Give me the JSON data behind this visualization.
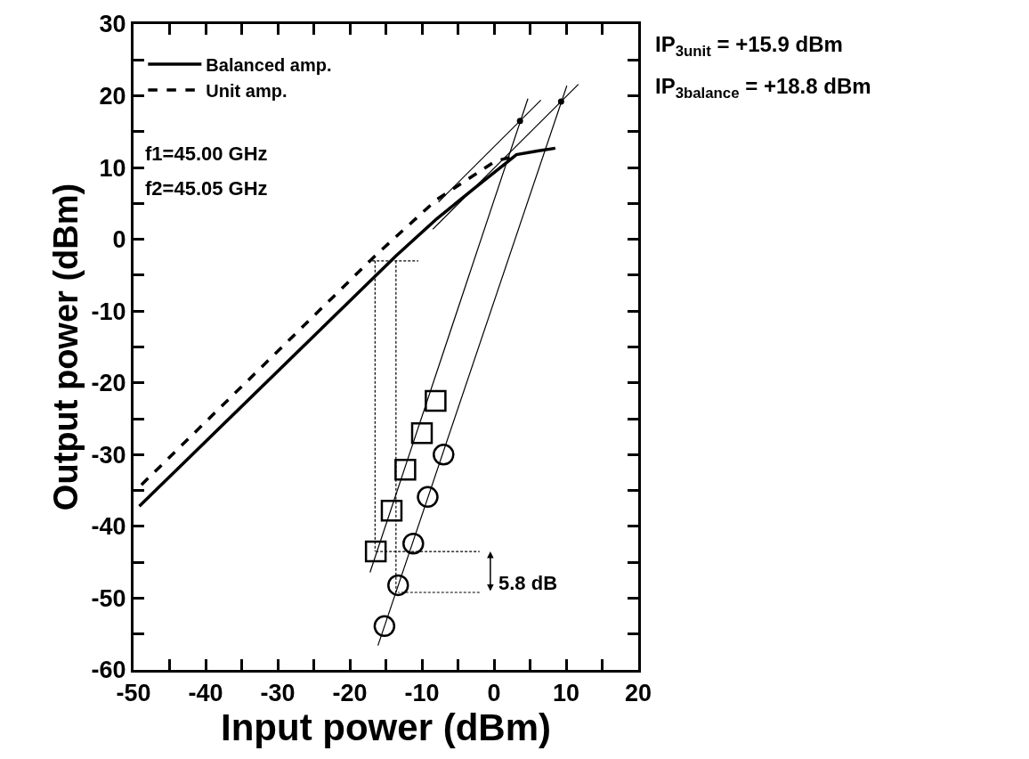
{
  "chart_data": {
    "type": "line",
    "xlabel": "Input power (dBm)",
    "ylabel": "Output power (dBm)",
    "xlim": [
      -50,
      20
    ],
    "ylim": [
      -60,
      30
    ],
    "xticks": [
      -50,
      {
        "value": -45,
        "label": null
      },
      -40,
      {
        "value": -35,
        "label": null
      },
      -30,
      {
        "value": -25,
        "label": null
      },
      -20,
      {
        "value": -15,
        "label": null
      },
      -10,
      {
        "value": -5,
        "label": null
      },
      0,
      {
        "value": 5,
        "label": null
      },
      10,
      {
        "value": 15,
        "label": null
      },
      20
    ],
    "yticks": [
      -60,
      {
        "value": -55,
        "label": null
      },
      -50,
      {
        "value": -45,
        "label": null
      },
      -40,
      {
        "value": -35,
        "label": null
      },
      -30,
      {
        "value": -25,
        "label": null
      },
      -20,
      {
        "value": -15,
        "label": null
      },
      -10,
      {
        "value": -5,
        "label": null
      },
      0,
      {
        "value": 5,
        "label": null
      },
      10,
      {
        "value": 15,
        "label": null
      },
      20,
      {
        "value": 25,
        "label": null
      },
      30
    ],
    "legend": "top left",
    "series": [
      {
        "name": "Balanced amp.",
        "line_style": "solid",
        "color": "#000000",
        "x": [
          -49.2,
          -13.6,
          -7.9,
          -2.5,
          1.5,
          3.1,
          6.0,
          8.5
        ],
        "values": [
          -37.2,
          -2.3,
          2.9,
          7.3,
          10.5,
          11.8,
          12.3,
          12.7
        ]
      },
      {
        "name": "Unit amp.",
        "line_style": "dashed",
        "color": "#000000",
        "x": [
          -48.9,
          -16.5,
          -8.0,
          0.2,
          2.5
        ],
        "values": [
          -34.2,
          -2.3,
          5.5,
          10.9,
          11.5
        ]
      },
      {
        "type": "scatter",
        "marker": "circle",
        "color": "#000000",
        "x": [
          -15.2,
          -13.3,
          -11.2,
          -9.2,
          -7.0
        ],
        "values": [
          -53.9,
          -48.2,
          -42.4,
          -35.9,
          -30.0
        ]
      },
      {
        "type": "scatter",
        "marker": "square",
        "color": "#000000",
        "x": [
          -16.4,
          -14.2,
          -12.3,
          -10.0,
          -8.1
        ],
        "values": [
          -43.5,
          -37.8,
          -32.1,
          -27.0,
          -22.5
        ]
      },
      {
        "line_style": "solid",
        "color": "#000000",
        "x": [
          -8.5,
          11.7
        ],
        "values": [
          1.4,
          21.6
        ]
      },
      {
        "line_style": "solid",
        "color": "#000000",
        "x": [
          -7.7,
          6.5
        ],
        "values": [
          5.2,
          19.4
        ]
      },
      {
        "line_style": "solid",
        "color": "#000000",
        "x": [
          -17.2,
          4.7
        ],
        "values": [
          -46.4,
          19.6
        ]
      },
      {
        "line_style": "solid",
        "color": "#000000",
        "x": [
          -16.1,
          10.1
        ],
        "values": [
          -56.6,
          21.4
        ]
      },
      {
        "type": "scatter",
        "color": "#000000",
        "x": [
          3.6,
          9.3
        ],
        "values": [
          16.5,
          19.2
        ]
      },
      {
        "line_style": "dashed",
        "color": "#000000",
        "x": [
          -16.5,
          -16.5,
          null,
          -13.6,
          -13.6,
          null,
          -17.5,
          -10.5,
          null,
          -16.4,
          -2.0,
          null,
          -2.0,
          -13.3
        ],
        "values": [
          -3,
          -43.5,
          null,
          -3,
          -49.2,
          null,
          -3,
          -3,
          null,
          -43.5,
          -43.5,
          null,
          -49.2,
          -49.2
        ]
      }
    ],
    "annotations": [
      "5.8 dB",
      "IP$_{3unit}$ = +15.9 dBm",
      "IP$_{3balance}$ = +18.8 dBm",
      "f1=45.00 GHz",
      "f2=45.05 GHz"
    ]
  }
}
